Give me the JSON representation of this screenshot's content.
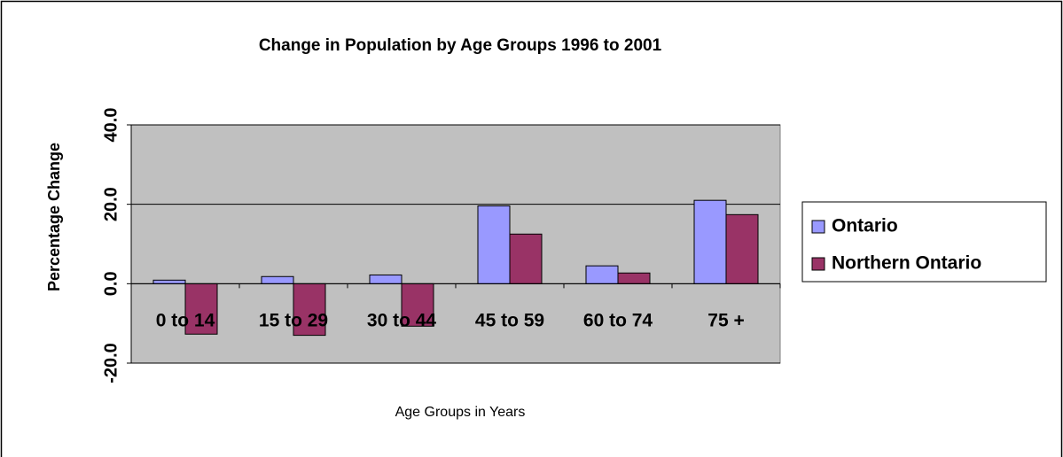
{
  "chart_data": {
    "type": "bar",
    "title": "Change in Population by Age Groups 1996 to 2001",
    "x_label": "Age Groups in Years",
    "y_label": "Percentage Change",
    "categories": [
      "0 to 14",
      "15 to 29",
      "30 to 44",
      "45 to 59",
      "60 to 74",
      "75 +"
    ],
    "series": [
      {
        "name": "Ontario",
        "color": "#9999ff",
        "values": [
          0.9,
          1.8,
          2.2,
          19.6,
          4.5,
          21.0
        ]
      },
      {
        "name": "Northern Ontario",
        "color": "#993366",
        "values": [
          -12.7,
          -13.0,
          -10.7,
          12.5,
          2.7,
          17.4
        ]
      }
    ],
    "ylim": [
      -20,
      40
    ],
    "yticks": [
      {
        "value": -20,
        "label": "-20.0"
      },
      {
        "value": 0,
        "label": "0.0"
      },
      {
        "value": 20,
        "label": "20.0"
      },
      {
        "value": 40,
        "label": "40.0"
      }
    ],
    "grid": true,
    "legend": "right"
  }
}
